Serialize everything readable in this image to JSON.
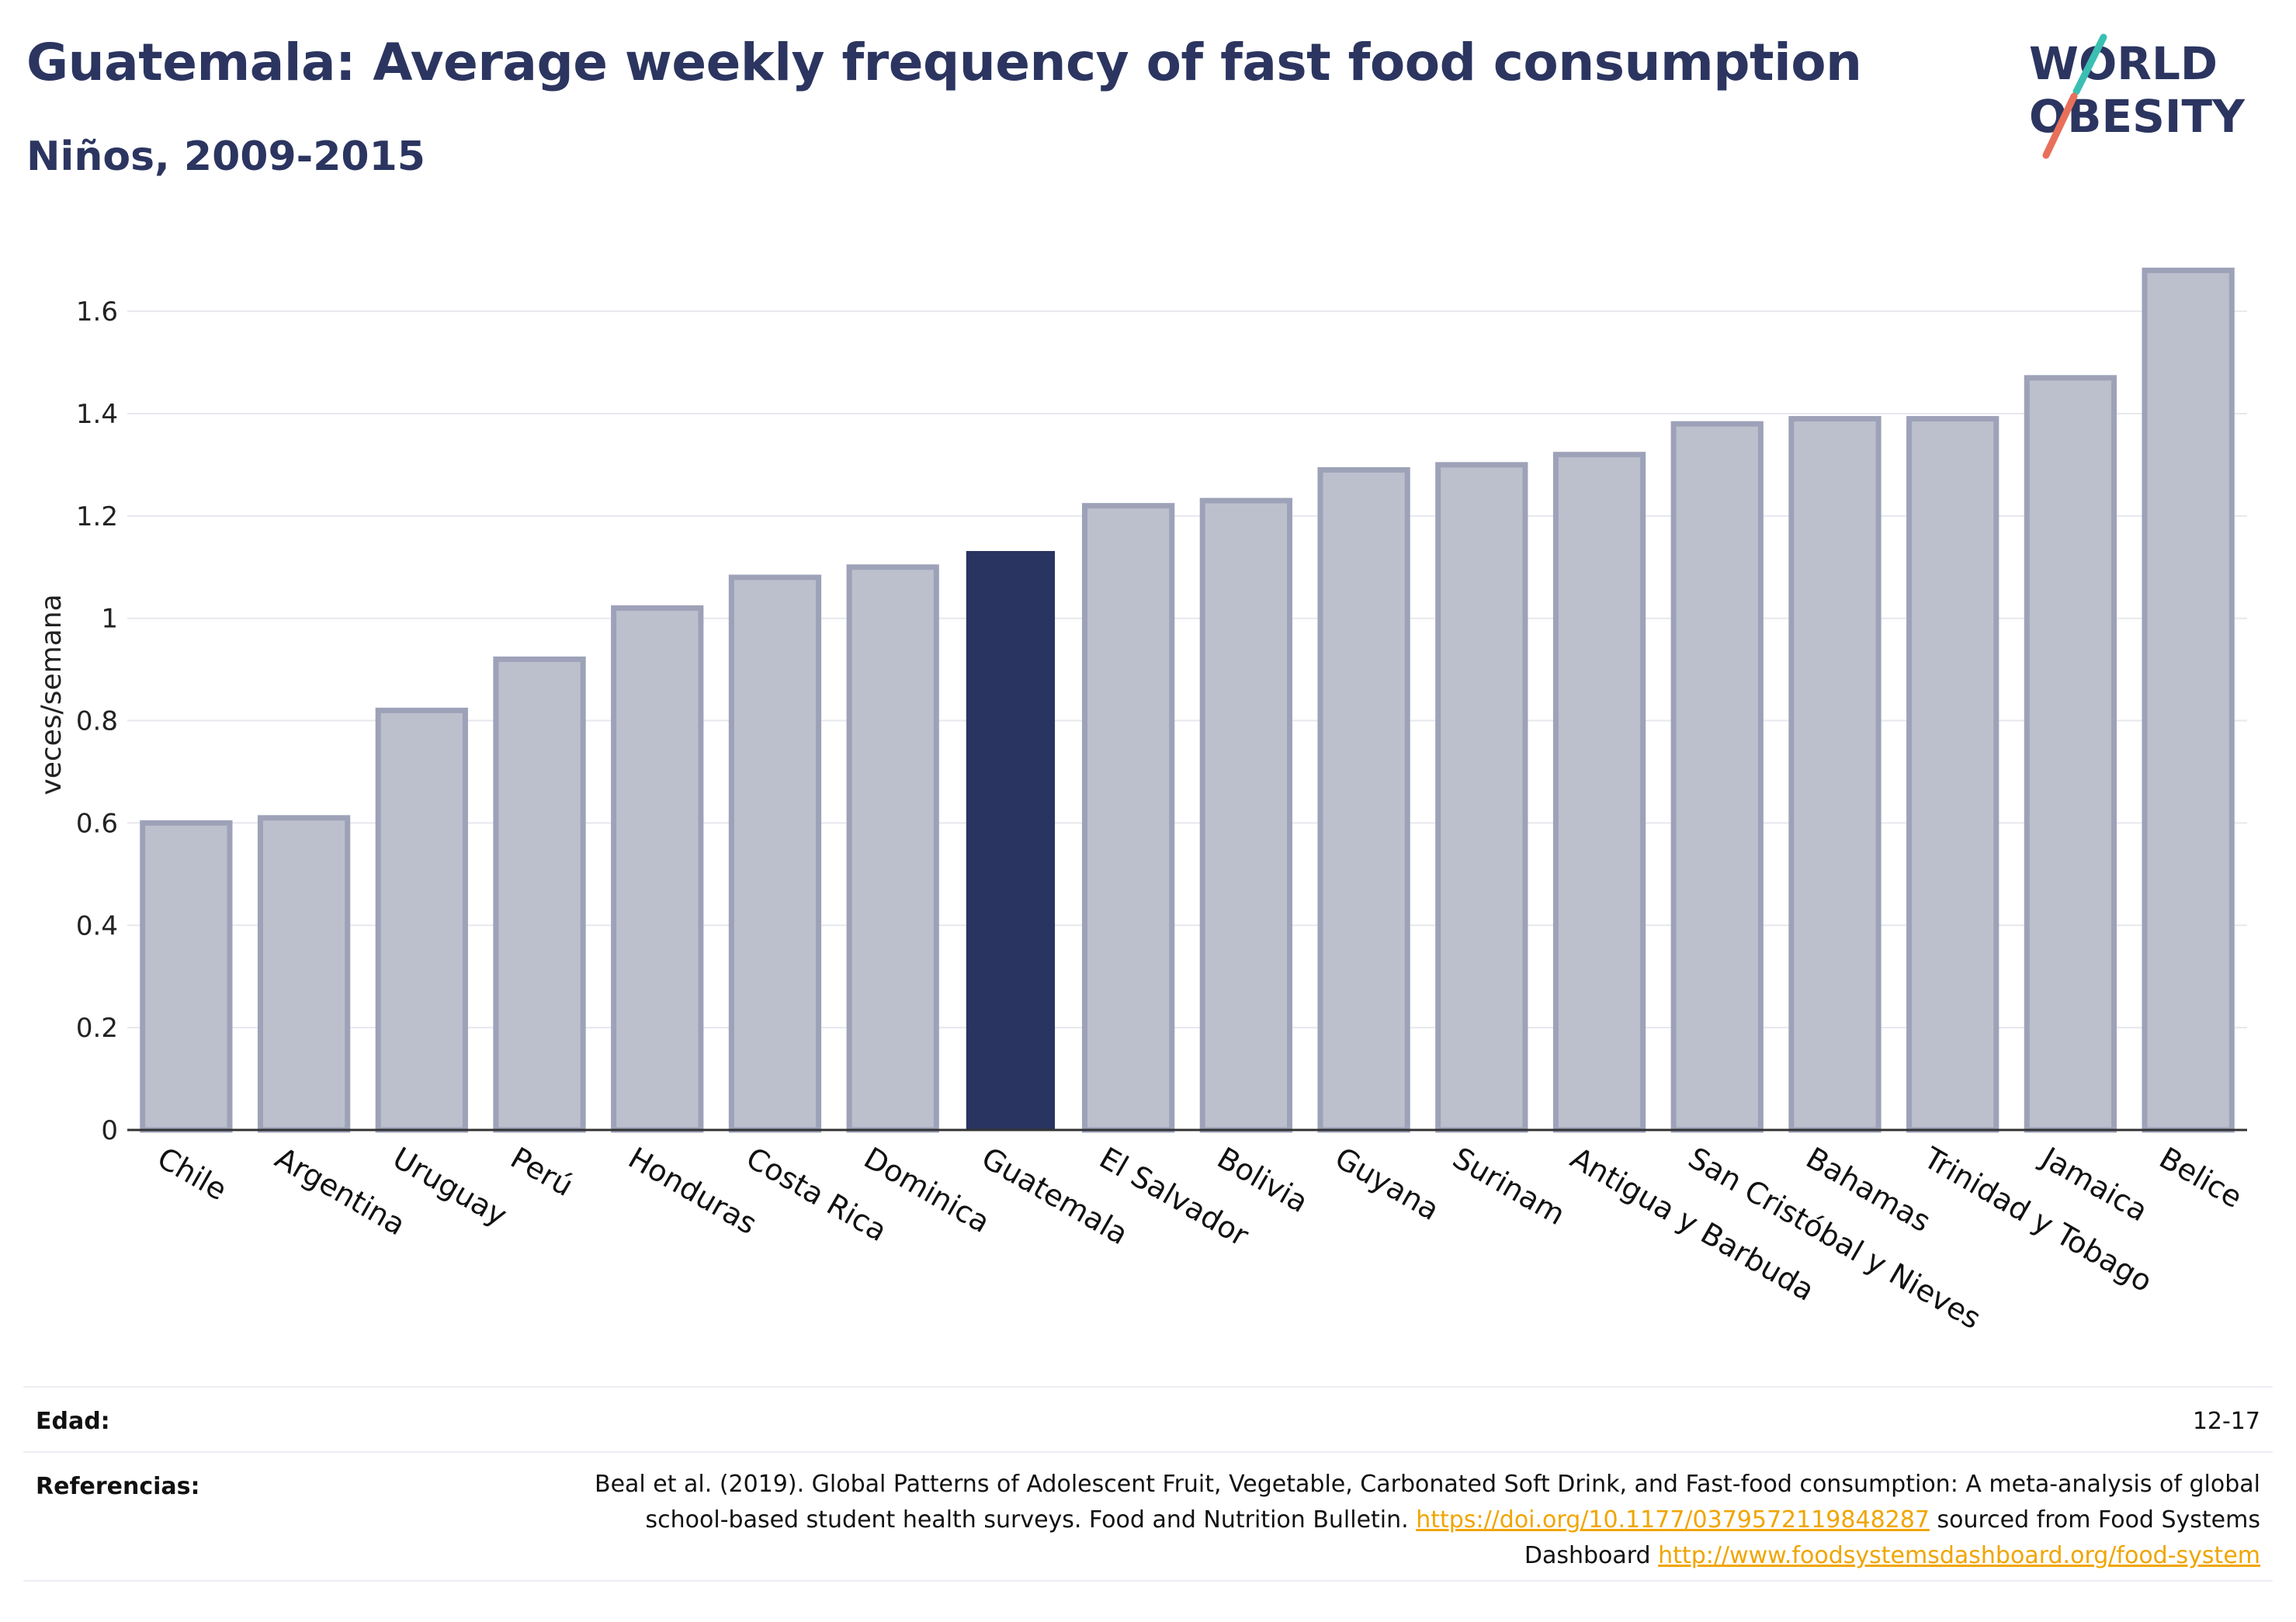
{
  "title": "Guatemala: Average weekly frequency of fast food consumption",
  "subtitle": "Niños, 2009-2015",
  "logo": {
    "line1": "WORLD",
    "line2": "OBESITY"
  },
  "colors": {
    "navy": "#2b3560",
    "bar_fill": "#bcc0cd",
    "bar_stroke": "#9da2b8",
    "highlight": "#2a3461",
    "accent_teal": "#3bbfb3",
    "accent_red": "#e8705a",
    "link": "#f0a500"
  },
  "chart_data": {
    "type": "bar",
    "ylabel": "veces/semana",
    "xlabel": "",
    "ylim": [
      0,
      1.72
    ],
    "yticks": [
      0,
      0.2,
      0.4,
      0.6,
      0.8,
      1,
      1.2,
      1.4,
      1.6
    ],
    "ytick_labels": [
      "0",
      "0.2",
      "0.4",
      "0.6",
      "0.8",
      "1",
      "1.2",
      "1.4",
      "1.6"
    ],
    "grid": true,
    "highlight_category": "Guatemala",
    "categories": [
      "Chile",
      "Argentina",
      "Uruguay",
      "Perú",
      "Honduras",
      "Costa Rica",
      "Dominica",
      "Guatemala",
      "El Salvador",
      "Bolivia",
      "Guyana",
      "Surinam",
      "Antigua y Barbuda",
      "San Cristóbal y Nieves",
      "Bahamas",
      "Trinidad y Tobago",
      "Jamaica",
      "Belice"
    ],
    "values": [
      0.6,
      0.61,
      0.82,
      0.92,
      1.02,
      1.08,
      1.1,
      1.13,
      1.22,
      1.23,
      1.29,
      1.3,
      1.32,
      1.38,
      1.39,
      1.39,
      1.47,
      1.68
    ]
  },
  "footer": {
    "age_label": "Edad:",
    "age_value": "12-17",
    "refs_label": "Referencias:",
    "refs_text_1": "Beal et al. (2019). Global Patterns of Adolescent Fruit, Vegetable, Carbonated Soft Drink, and Fast-food consumption: A meta-analysis of global school-based student health surveys. Food and Nutrition Bulletin.",
    "refs_link_1": "https://doi.org/10.1177/0379572119848287",
    "refs_text_2": "sourced from Food Systems Dashboard",
    "refs_link_2": "http://www.foodsystemsdashboard.org/food-system"
  }
}
